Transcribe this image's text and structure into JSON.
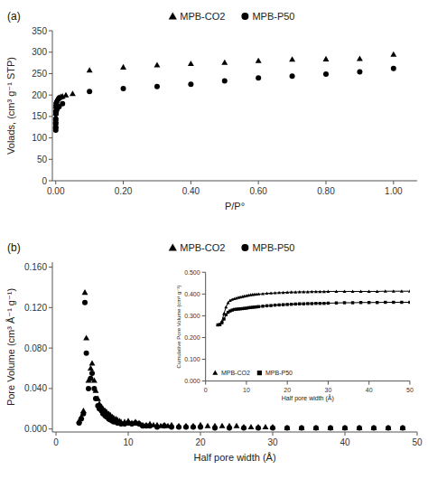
{
  "chart_data": [
    {
      "type": "scatter",
      "title": "(a)",
      "x_label": "P/P°",
      "y_label": "Volads, (cm³ g⁻¹ STP)",
      "xlim": [
        -0.01,
        1.07
      ],
      "ylim": [
        0,
        350
      ],
      "xticks": [
        {
          "value": 0.0,
          "label": "0.00"
        },
        {
          "value": 0.2,
          "label": "0.20"
        },
        {
          "value": 0.4,
          "label": "0.40"
        },
        {
          "value": 0.6,
          "label": "0.60"
        },
        {
          "value": 0.8,
          "label": "0.80"
        },
        {
          "value": 1.0,
          "label": "1.00"
        }
      ],
      "yticks": [
        0,
        50,
        100,
        150,
        200,
        250,
        300,
        350
      ],
      "legend": "top",
      "series": [
        {
          "name": "MPB-CO2",
          "color": "black",
          "marker": "triangle",
          "x": [
            5e-05,
            0.0001,
            0.00015,
            0.0002,
            0.0003,
            0.0005,
            0.0007,
            0.001,
            0.0015,
            0.002,
            0.003,
            0.004,
            0.005,
            0.006,
            0.008,
            0.01,
            0.015,
            0.02,
            0.03,
            0.05,
            0.1,
            0.2,
            0.3,
            0.4,
            0.5,
            0.6,
            0.7,
            0.8,
            0.9,
            1.0
          ],
          "values": [
            127,
            140,
            150,
            158,
            167,
            174,
            178,
            181,
            184,
            186,
            188,
            190,
            191,
            192,
            193,
            194,
            196,
            197,
            200,
            203,
            258,
            265,
            270,
            273,
            276,
            280,
            283,
            284,
            285,
            295
          ]
        },
        {
          "name": "MPB-P50",
          "color": "black",
          "marker": "circle",
          "x": [
            5e-05,
            0.0001,
            0.00015,
            0.0002,
            0.0005,
            0.001,
            0.002,
            0.003,
            0.005,
            0.01,
            0.02,
            0.1,
            0.2,
            0.3,
            0.4,
            0.5,
            0.6,
            0.7,
            0.8,
            0.9,
            1.0
          ],
          "values": [
            118,
            125,
            133,
            142,
            157,
            162,
            165,
            167,
            170,
            173,
            180,
            208,
            215,
            220,
            225,
            233,
            240,
            244,
            249,
            254,
            262
          ]
        }
      ]
    },
    {
      "type": "scatter",
      "title": "(b)",
      "x_label": "Half pore width (Å)",
      "y_label": "Pore Volume (cm³ Å⁻¹ g⁻¹)",
      "xlim": [
        -0.5,
        50
      ],
      "ylim": [
        -0.003,
        0.165
      ],
      "xticks": [
        0,
        10,
        20,
        30,
        40,
        50
      ],
      "yticks": [
        {
          "value": 0.0,
          "label": "0.000"
        },
        {
          "value": 0.04,
          "label": "0.040"
        },
        {
          "value": 0.08,
          "label": "0.080"
        },
        {
          "value": 0.12,
          "label": "0.120"
        },
        {
          "value": 0.16,
          "label": "0.160"
        }
      ],
      "legend": "top",
      "series": [
        {
          "name": "MPB-CO2",
          "color": "black",
          "marker": "triangle",
          "x": [
            3.2,
            3.5,
            3.8,
            4.0,
            4.2,
            4.5,
            4.8,
            5.0,
            5.3,
            5.5,
            5.8,
            6.0,
            6.3,
            6.5,
            6.8,
            7.0,
            7.3,
            7.5,
            7.8,
            8.0,
            8.3,
            8.5,
            8.8,
            9.0,
            9.5,
            10.0,
            10.5,
            11.0,
            11.5,
            12.0,
            12.5,
            13.0,
            13.5,
            14.0,
            14.5,
            15.0,
            15.5,
            16.0,
            17.0,
            18.0,
            19.0,
            20.0,
            21.0,
            22.0,
            23.0,
            24.0,
            25.0,
            26.0,
            27.0,
            28.0,
            29.0,
            30.0,
            32.0,
            34.0,
            36.0,
            38.0,
            40.0,
            42.0,
            44.0,
            46.0,
            48.0
          ],
          "values": [
            0.008,
            0.012,
            0.018,
            0.135,
            0.09,
            0.048,
            0.06,
            0.065,
            0.048,
            0.038,
            0.03,
            0.025,
            0.022,
            0.02,
            0.018,
            0.017,
            0.015,
            0.014,
            0.012,
            0.011,
            0.01,
            0.009,
            0.008,
            0.007,
            0.007,
            0.008,
            0.006,
            0.007,
            0.006,
            0.004,
            0.004,
            0.005,
            0.004,
            0.004,
            0.003,
            0.004,
            0.003,
            0.004,
            0.003,
            0.003,
            0.003,
            0.004,
            0.003,
            0.003,
            0.003,
            0.003,
            0.003,
            0.002,
            0.002,
            0.002,
            0.002,
            0.002,
            0.001,
            0.001,
            0.001,
            0.001,
            0.001,
            0.001,
            0.001,
            0.001,
            0.001
          ]
        },
        {
          "name": "MPB-P50",
          "color": "black",
          "marker": "circle",
          "x": [
            3.2,
            3.5,
            3.8,
            4.0,
            4.2,
            4.5,
            4.8,
            5.0,
            5.3,
            5.5,
            5.8,
            6.0,
            6.3,
            6.5,
            6.8,
            7.0,
            7.3,
            7.5,
            7.8,
            8.0,
            8.5,
            9.0,
            9.5,
            10.0,
            10.5,
            11.0,
            11.5,
            12.0,
            12.5,
            13.0,
            14.0,
            15.0,
            16.0,
            17.0,
            18.0,
            19.0,
            20.0,
            22.0,
            24.0,
            26.0,
            28.0,
            30.0,
            32.0,
            34.0,
            36.0,
            38.0,
            40.0,
            42.0,
            44.0,
            46.0,
            48.0
          ],
          "values": [
            0.006,
            0.01,
            0.015,
            0.125,
            0.075,
            0.04,
            0.05,
            0.055,
            0.04,
            0.03,
            0.023,
            0.02,
            0.018,
            0.015,
            0.013,
            0.012,
            0.01,
            0.009,
            0.008,
            0.007,
            0.006,
            0.005,
            0.005,
            0.006,
            0.005,
            0.006,
            0.005,
            0.003,
            0.003,
            0.003,
            0.002,
            0.003,
            0.002,
            0.002,
            0.002,
            0.002,
            0.002,
            0.001,
            0.001,
            0.001,
            0.001,
            0.001,
            0.001,
            0.001,
            0.001,
            0.001,
            0.001,
            0.001,
            0.001,
            0.001,
            0.001
          ]
        }
      ]
    },
    {
      "type": "line",
      "x_label": "Half pore width (Å)",
      "y_label": "Cumulative Pore Volume (cm³ g⁻¹)",
      "xlim": [
        0,
        50
      ],
      "ylim": [
        0.0,
        0.5
      ],
      "xticks": [
        0,
        10,
        20,
        30,
        40,
        50
      ],
      "yticks": [
        {
          "value": 0.0,
          "label": "0.000"
        },
        {
          "value": 0.1,
          "label": "0.100"
        },
        {
          "value": 0.2,
          "label": "0.200"
        },
        {
          "value": 0.3,
          "label": "0.300"
        },
        {
          "value": 0.4,
          "label": "0.400"
        },
        {
          "value": 0.5,
          "label": "0.500"
        }
      ],
      "legend": "bottom-left",
      "series": [
        {
          "name": "MPB-CO2",
          "color": "black",
          "marker": "triangle",
          "x": [
            3.0,
            3.5,
            4.0,
            4.5,
            5.0,
            5.5,
            6.0,
            6.5,
            7.0,
            7.5,
            8.0,
            8.5,
            9.0,
            9.5,
            10.0,
            10.5,
            11.0,
            11.5,
            12.0,
            12.5,
            13.0,
            14.0,
            15.0,
            16.0,
            17.0,
            18.0,
            19.0,
            20.0,
            21.0,
            22.0,
            23.0,
            24.0,
            25.0,
            26.0,
            27.0,
            28.0,
            29.0,
            30.0,
            32.0,
            34.0,
            36.0,
            38.0,
            40.0,
            42.0,
            44.0,
            46.0,
            48.0,
            50.0
          ],
          "values": [
            0.258,
            0.26,
            0.275,
            0.31,
            0.34,
            0.36,
            0.37,
            0.375,
            0.378,
            0.381,
            0.384,
            0.386,
            0.388,
            0.39,
            0.392,
            0.394,
            0.396,
            0.397,
            0.398,
            0.399,
            0.4,
            0.401,
            0.403,
            0.404,
            0.405,
            0.406,
            0.407,
            0.408,
            0.409,
            0.409,
            0.41,
            0.41,
            0.41,
            0.411,
            0.411,
            0.411,
            0.411,
            0.412,
            0.412,
            0.412,
            0.412,
            0.412,
            0.412,
            0.412,
            0.413,
            0.413,
            0.413,
            0.413
          ]
        },
        {
          "name": "MPB-P50",
          "color": "black",
          "marker": "square",
          "x": [
            3.0,
            3.5,
            4.0,
            4.5,
            5.0,
            5.5,
            6.0,
            6.5,
            7.0,
            7.5,
            8.0,
            8.5,
            9.0,
            9.5,
            10.0,
            10.5,
            11.0,
            11.5,
            12.0,
            12.5,
            13.0,
            14.0,
            15.0,
            16.0,
            17.0,
            18.0,
            19.0,
            20.0,
            21.0,
            22.0,
            23.0,
            24.0,
            25.0,
            26.0,
            27.0,
            28.0,
            29.0,
            30.0,
            32.0,
            34.0,
            36.0,
            38.0,
            40.0,
            42.0,
            44.0,
            46.0,
            48.0,
            50.0
          ],
          "values": [
            0.258,
            0.26,
            0.268,
            0.285,
            0.305,
            0.316,
            0.322,
            0.326,
            0.329,
            0.33,
            0.331,
            0.332,
            0.333,
            0.334,
            0.335,
            0.337,
            0.338,
            0.339,
            0.34,
            0.341,
            0.342,
            0.344,
            0.346,
            0.347,
            0.349,
            0.35,
            0.351,
            0.352,
            0.353,
            0.354,
            0.355,
            0.355,
            0.356,
            0.356,
            0.357,
            0.357,
            0.357,
            0.358,
            0.359,
            0.36,
            0.36,
            0.361,
            0.361,
            0.361,
            0.362,
            0.362,
            0.362,
            0.362
          ]
        }
      ]
    }
  ]
}
